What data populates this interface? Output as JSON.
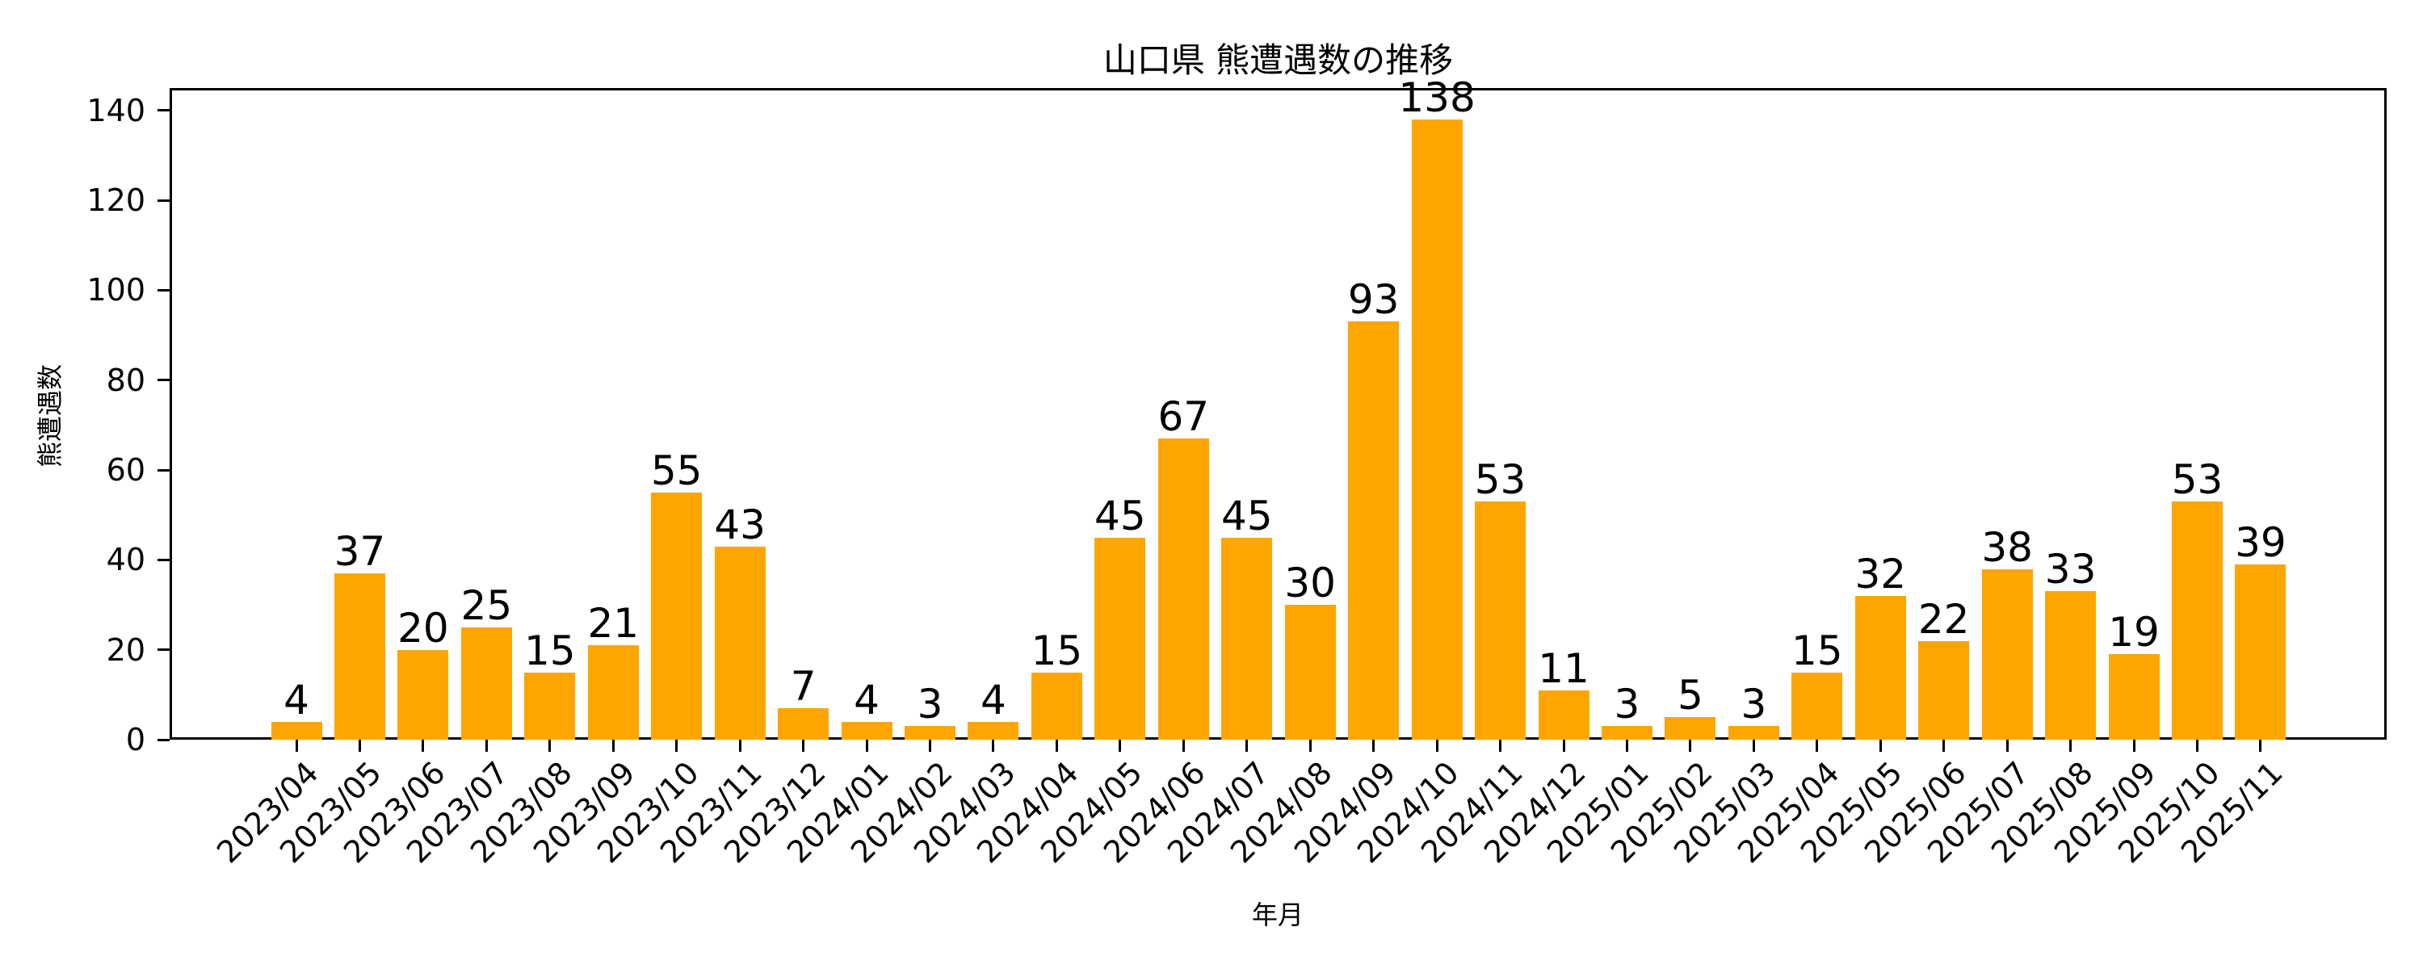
{
  "chart_data": {
    "type": "bar",
    "title": "山口県 熊遭遇数の推移",
    "xlabel": "年月",
    "ylabel": "熊遭遇数",
    "ylim": [
      0,
      145
    ],
    "yticks": [
      0,
      20,
      40,
      60,
      80,
      100,
      120,
      140
    ],
    "grid": false,
    "legend": null,
    "bar_color": "#FFA500",
    "show_value_labels": true,
    "categories": [
      "2023/04",
      "2023/05",
      "2023/06",
      "2023/07",
      "2023/08",
      "2023/09",
      "2023/10",
      "2023/11",
      "2023/12",
      "2024/01",
      "2024/02",
      "2024/03",
      "2024/04",
      "2024/05",
      "2024/06",
      "2024/07",
      "2024/08",
      "2024/09",
      "2024/10",
      "2024/11",
      "2024/12",
      "2025/01",
      "2025/02",
      "2025/03",
      "2025/04",
      "2025/05",
      "2025/06",
      "2025/07",
      "2025/08",
      "2025/09",
      "2025/10",
      "2025/11"
    ],
    "values": [
      4,
      37,
      20,
      25,
      15,
      21,
      55,
      43,
      7,
      4,
      3,
      4,
      15,
      45,
      67,
      45,
      30,
      93,
      138,
      53,
      11,
      3,
      5,
      3,
      15,
      32,
      22,
      38,
      33,
      19,
      53,
      39
    ]
  }
}
